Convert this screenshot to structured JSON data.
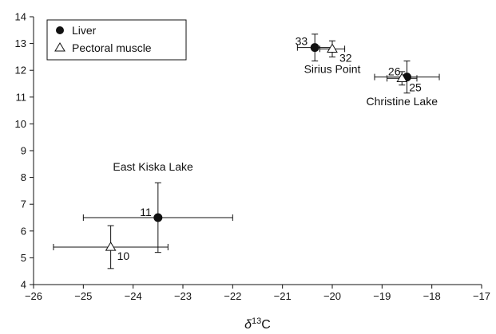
{
  "chart_data": {
    "type": "scatter",
    "xlim": [
      -26,
      -17
    ],
    "ylim": [
      4,
      14
    ],
    "x_ticks": [
      -26,
      -25,
      -24,
      -23,
      -22,
      -21,
      -20,
      -19,
      -18,
      -17
    ],
    "y_ticks": [
      4,
      5,
      6,
      7,
      8,
      9,
      10,
      11,
      12,
      13,
      14
    ],
    "xlabel": "δ13C",
    "ylabel": "",
    "grid": false,
    "legend_position": "top-left",
    "series": [
      {
        "name": "Liver",
        "marker": "filled-circle",
        "points": [
          {
            "x": -20.35,
            "y": 12.85,
            "xerr": 0.35,
            "yerr": 0.5,
            "n": "33"
          },
          {
            "x": -18.5,
            "y": 11.75,
            "xerr": 0.65,
            "yerr": 0.6,
            "n": "26"
          },
          {
            "x": -23.5,
            "y": 6.5,
            "xerr": 1.5,
            "yerr": 1.3,
            "n": "11"
          }
        ]
      },
      {
        "name": "Pectoral muscle",
        "marker": "open-triangle",
        "points": [
          {
            "x": -20.0,
            "y": 12.8,
            "xerr": 0.25,
            "yerr": 0.3,
            "n": "32"
          },
          {
            "x": -18.6,
            "y": 11.7,
            "xerr": 0.3,
            "yerr": 0.25,
            "n": "25"
          },
          {
            "x": -24.45,
            "y": 5.4,
            "xerr": 1.15,
            "yerr": 0.8,
            "n": "10"
          }
        ]
      }
    ],
    "annotations": [
      {
        "text": "Sirius Point",
        "x": -20.0,
        "y": 11.9
      },
      {
        "text": "Christine Lake",
        "x": -18.6,
        "y": 10.7
      },
      {
        "text": "East Kiska Lake",
        "x": -23.6,
        "y": 8.25
      }
    ]
  }
}
